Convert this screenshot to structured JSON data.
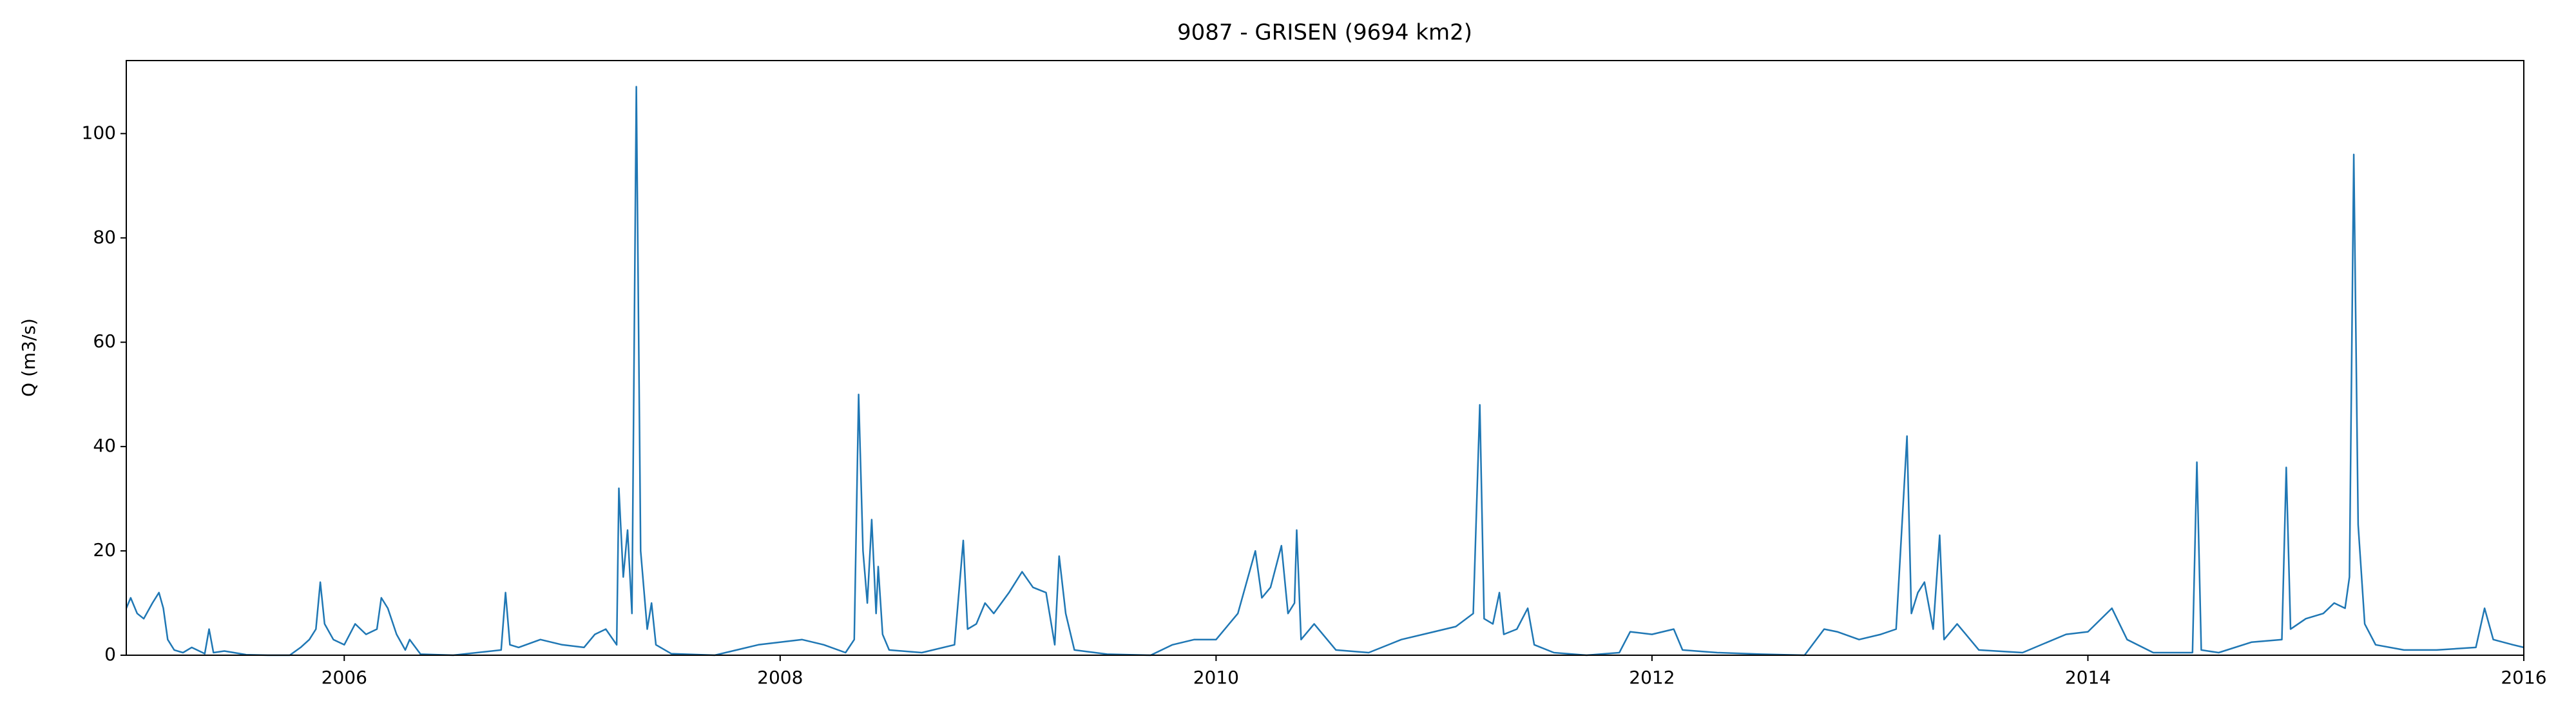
{
  "chart_data": {
    "type": "line",
    "title": "9087 - GRISEN (9694 km2)",
    "ylabel": "Q (m3/s)",
    "xlim": [
      2005,
      2016
    ],
    "xticks": [
      2006,
      2008,
      2010,
      2012,
      2014,
      2016
    ],
    "ylim": [
      0,
      114
    ],
    "yticks": [
      0,
      20,
      40,
      60,
      80,
      100
    ],
    "grid": false,
    "color": "#1f77b4",
    "x": [
      2005.0,
      2005.02,
      2005.05,
      2005.08,
      2005.12,
      2005.15,
      2005.17,
      2005.19,
      2005.22,
      2005.26,
      2005.3,
      2005.36,
      2005.38,
      2005.4,
      2005.45,
      2005.55,
      2005.65,
      2005.75,
      2005.8,
      2005.84,
      2005.87,
      2005.89,
      2005.91,
      2005.95,
      2006.0,
      2006.05,
      2006.1,
      2006.15,
      2006.17,
      2006.2,
      2006.24,
      2006.28,
      2006.3,
      2006.35,
      2006.5,
      2006.72,
      2006.74,
      2006.76,
      2006.8,
      2006.9,
      2007.0,
      2007.1,
      2007.15,
      2007.2,
      2007.25,
      2007.26,
      2007.28,
      2007.3,
      2007.32,
      2007.34,
      2007.36,
      2007.39,
      2007.41,
      2007.43,
      2007.5,
      2007.7,
      2007.9,
      2008.0,
      2008.1,
      2008.2,
      2008.3,
      2008.34,
      2008.36,
      2008.38,
      2008.4,
      2008.42,
      2008.44,
      2008.45,
      2008.47,
      2008.5,
      2008.65,
      2008.8,
      2008.84,
      2008.86,
      2008.9,
      2008.94,
      2008.98,
      2009.05,
      2009.11,
      2009.16,
      2009.22,
      2009.26,
      2009.28,
      2009.31,
      2009.35,
      2009.5,
      2009.7,
      2009.8,
      2009.9,
      2010.0,
      2010.1,
      2010.18,
      2010.21,
      2010.25,
      2010.3,
      2010.33,
      2010.36,
      2010.37,
      2010.39,
      2010.45,
      2010.55,
      2010.7,
      2010.85,
      2011.0,
      2011.1,
      2011.18,
      2011.21,
      2011.23,
      2011.27,
      2011.3,
      2011.32,
      2011.38,
      2011.43,
      2011.46,
      2011.55,
      2011.7,
      2011.85,
      2011.9,
      2012.0,
      2012.1,
      2012.14,
      2012.3,
      2012.5,
      2012.7,
      2012.79,
      2012.85,
      2012.95,
      2013.05,
      2013.12,
      2013.17,
      2013.19,
      2013.22,
      2013.25,
      2013.29,
      2013.32,
      2013.34,
      2013.4,
      2013.5,
      2013.7,
      2013.9,
      2014.0,
      2014.11,
      2014.18,
      2014.3,
      2014.48,
      2014.5,
      2014.52,
      2014.6,
      2014.75,
      2014.89,
      2014.91,
      2014.93,
      2015.0,
      2015.08,
      2015.13,
      2015.18,
      2015.2,
      2015.22,
      2015.24,
      2015.27,
      2015.32,
      2015.45,
      2015.6,
      2015.78,
      2015.82,
      2015.86,
      2015.95,
      2016.0
    ],
    "values": [
      9,
      11,
      8,
      7,
      10,
      12,
      9,
      3,
      1,
      0.5,
      1.5,
      0.3,
      5,
      0.5,
      0.8,
      0.1,
      0,
      0,
      1.5,
      3,
      5,
      14,
      6,
      3,
      2,
      6,
      4,
      5,
      11,
      9,
      4,
      1,
      3,
      0.2,
      0,
      1,
      12,
      2,
      1.5,
      3,
      2,
      1.5,
      4,
      5,
      2,
      32,
      15,
      24,
      8,
      109,
      20,
      5,
      10,
      2,
      0.3,
      0,
      2,
      2.5,
      3,
      2,
      0.5,
      3,
      50,
      20,
      10,
      26,
      8,
      17,
      4,
      1,
      0.5,
      2,
      22,
      5,
      6,
      10,
      8,
      12,
      16,
      13,
      12,
      2,
      19,
      8,
      1,
      0.2,
      0,
      2,
      3,
      3,
      8,
      20,
      11,
      13,
      21,
      8,
      10,
      24,
      3,
      6,
      1,
      0.5,
      3,
      4.5,
      5.5,
      8,
      48,
      7,
      6,
      12,
      4,
      5,
      9,
      2,
      0.5,
      0,
      0.5,
      4.5,
      4,
      5,
      1,
      0.5,
      0.2,
      0,
      5,
      4.5,
      3,
      4,
      5,
      42,
      8,
      12,
      14,
      5,
      23,
      3,
      6,
      1,
      0.5,
      4,
      4.5,
      9,
      3,
      0.5,
      0.5,
      37,
      1,
      0.5,
      2.5,
      3,
      36,
      5,
      7,
      8,
      10,
      9,
      15,
      96,
      25,
      6,
      2,
      1,
      1,
      1.5,
      9,
      3,
      2,
      1.5
    ]
  }
}
